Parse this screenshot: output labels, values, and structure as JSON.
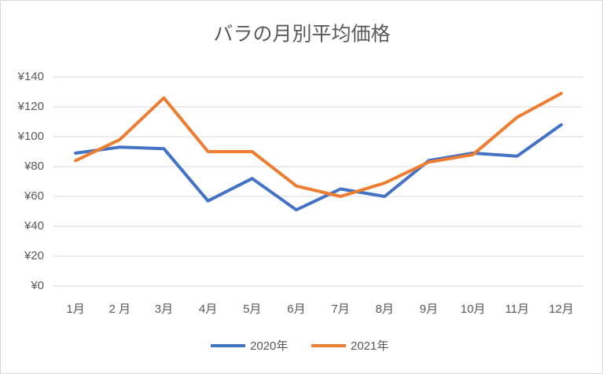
{
  "chart_data": {
    "type": "line",
    "title": "バラの月別平均価格",
    "categories": [
      "1月",
      "2 月",
      "3月",
      "4月",
      "5月",
      "6月",
      "7月",
      "8月",
      "9月",
      "10月",
      "11月",
      "12月"
    ],
    "series": [
      {
        "name": "2020年",
        "color": "#4472c4",
        "values": [
          89,
          93,
          92,
          57,
          72,
          51,
          65,
          60,
          84,
          89,
          87,
          108
        ]
      },
      {
        "name": "2021年",
        "color": "#ed7d31",
        "values": [
          84,
          98,
          126,
          90,
          90,
          67,
          60,
          69,
          83,
          88,
          113,
          129
        ]
      }
    ],
    "ylim": [
      0,
      140
    ],
    "yticks": [
      {
        "value": 0,
        "label": "¥0"
      },
      {
        "value": 20,
        "label": "¥20"
      },
      {
        "value": 40,
        "label": "¥40"
      },
      {
        "value": 60,
        "label": "¥60"
      },
      {
        "value": 80,
        "label": "¥80"
      },
      {
        "value": 100,
        "label": "¥100"
      },
      {
        "value": 120,
        "label": "¥120"
      },
      {
        "value": 140,
        "label": "¥140"
      }
    ],
    "grid": true,
    "legend": "bottom"
  }
}
